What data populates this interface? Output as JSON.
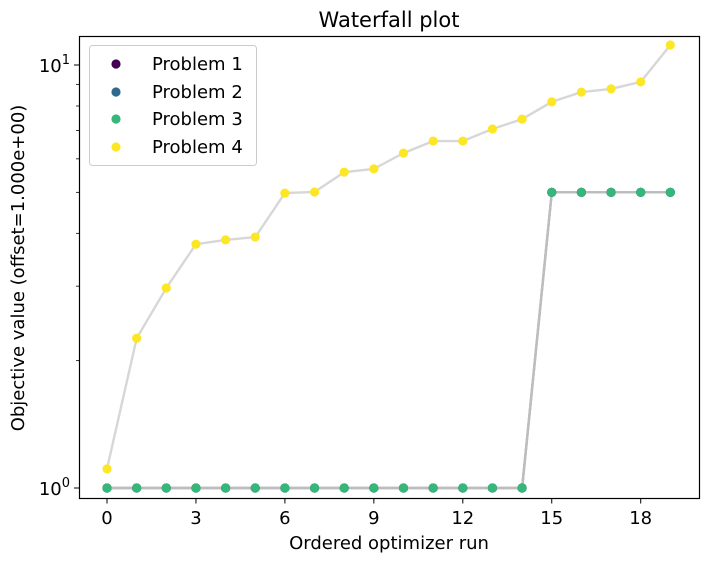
{
  "chart_data": {
    "type": "line",
    "title": "Waterfall plot",
    "xlabel": "Ordered optimizer run",
    "ylabel": "Objective value (offset=1.000e+00)",
    "yscale": "log",
    "ylim": [
      0.95,
      11.8
    ],
    "xlim": [
      -0.95,
      19.75
    ],
    "xticks": [
      0,
      3,
      6,
      9,
      12,
      15,
      18
    ],
    "yticks": [
      {
        "value": 1,
        "base": "10",
        "exp": "0"
      },
      {
        "value": 10,
        "base": "10",
        "exp": "1"
      }
    ],
    "grid": false,
    "legend_position": "upper left",
    "x": [
      0,
      1,
      2,
      3,
      4,
      5,
      6,
      7,
      8,
      9,
      10,
      11,
      12,
      13,
      14,
      15,
      16,
      17,
      18,
      19
    ],
    "series": [
      {
        "name": "Problem 1",
        "color": "#440154",
        "line_color": "#bdbdbd",
        "values": [
          1,
          1,
          1,
          1,
          1,
          1,
          1,
          1,
          1,
          1,
          1,
          1,
          1,
          1,
          1,
          5.0,
          5.0,
          5.0,
          5.0,
          5.0
        ]
      },
      {
        "name": "Problem 2",
        "color": "#31688e",
        "line_color": "#bdbdbd",
        "values": [
          1,
          1,
          1,
          1,
          1,
          1,
          1,
          1,
          1,
          1,
          1,
          1,
          1,
          1,
          1,
          5.0,
          5.0,
          5.0,
          5.0,
          5.0
        ]
      },
      {
        "name": "Problem 3",
        "color": "#35b779",
        "line_color": "#bdbdbd",
        "values": [
          1,
          1,
          1,
          1,
          1,
          1,
          1,
          1,
          1,
          1,
          1,
          1,
          1,
          1,
          1,
          5.0,
          5.0,
          5.0,
          5.0,
          5.0
        ]
      },
      {
        "name": "Problem 4",
        "color": "#fde725",
        "line_color": "#d3d3d3",
        "values": [
          1.11,
          2.26,
          2.97,
          3.77,
          3.86,
          3.92,
          4.98,
          5.01,
          5.58,
          5.68,
          6.19,
          6.61,
          6.61,
          7.06,
          7.45,
          8.18,
          8.63,
          8.78,
          9.12,
          11.15
        ]
      }
    ]
  }
}
